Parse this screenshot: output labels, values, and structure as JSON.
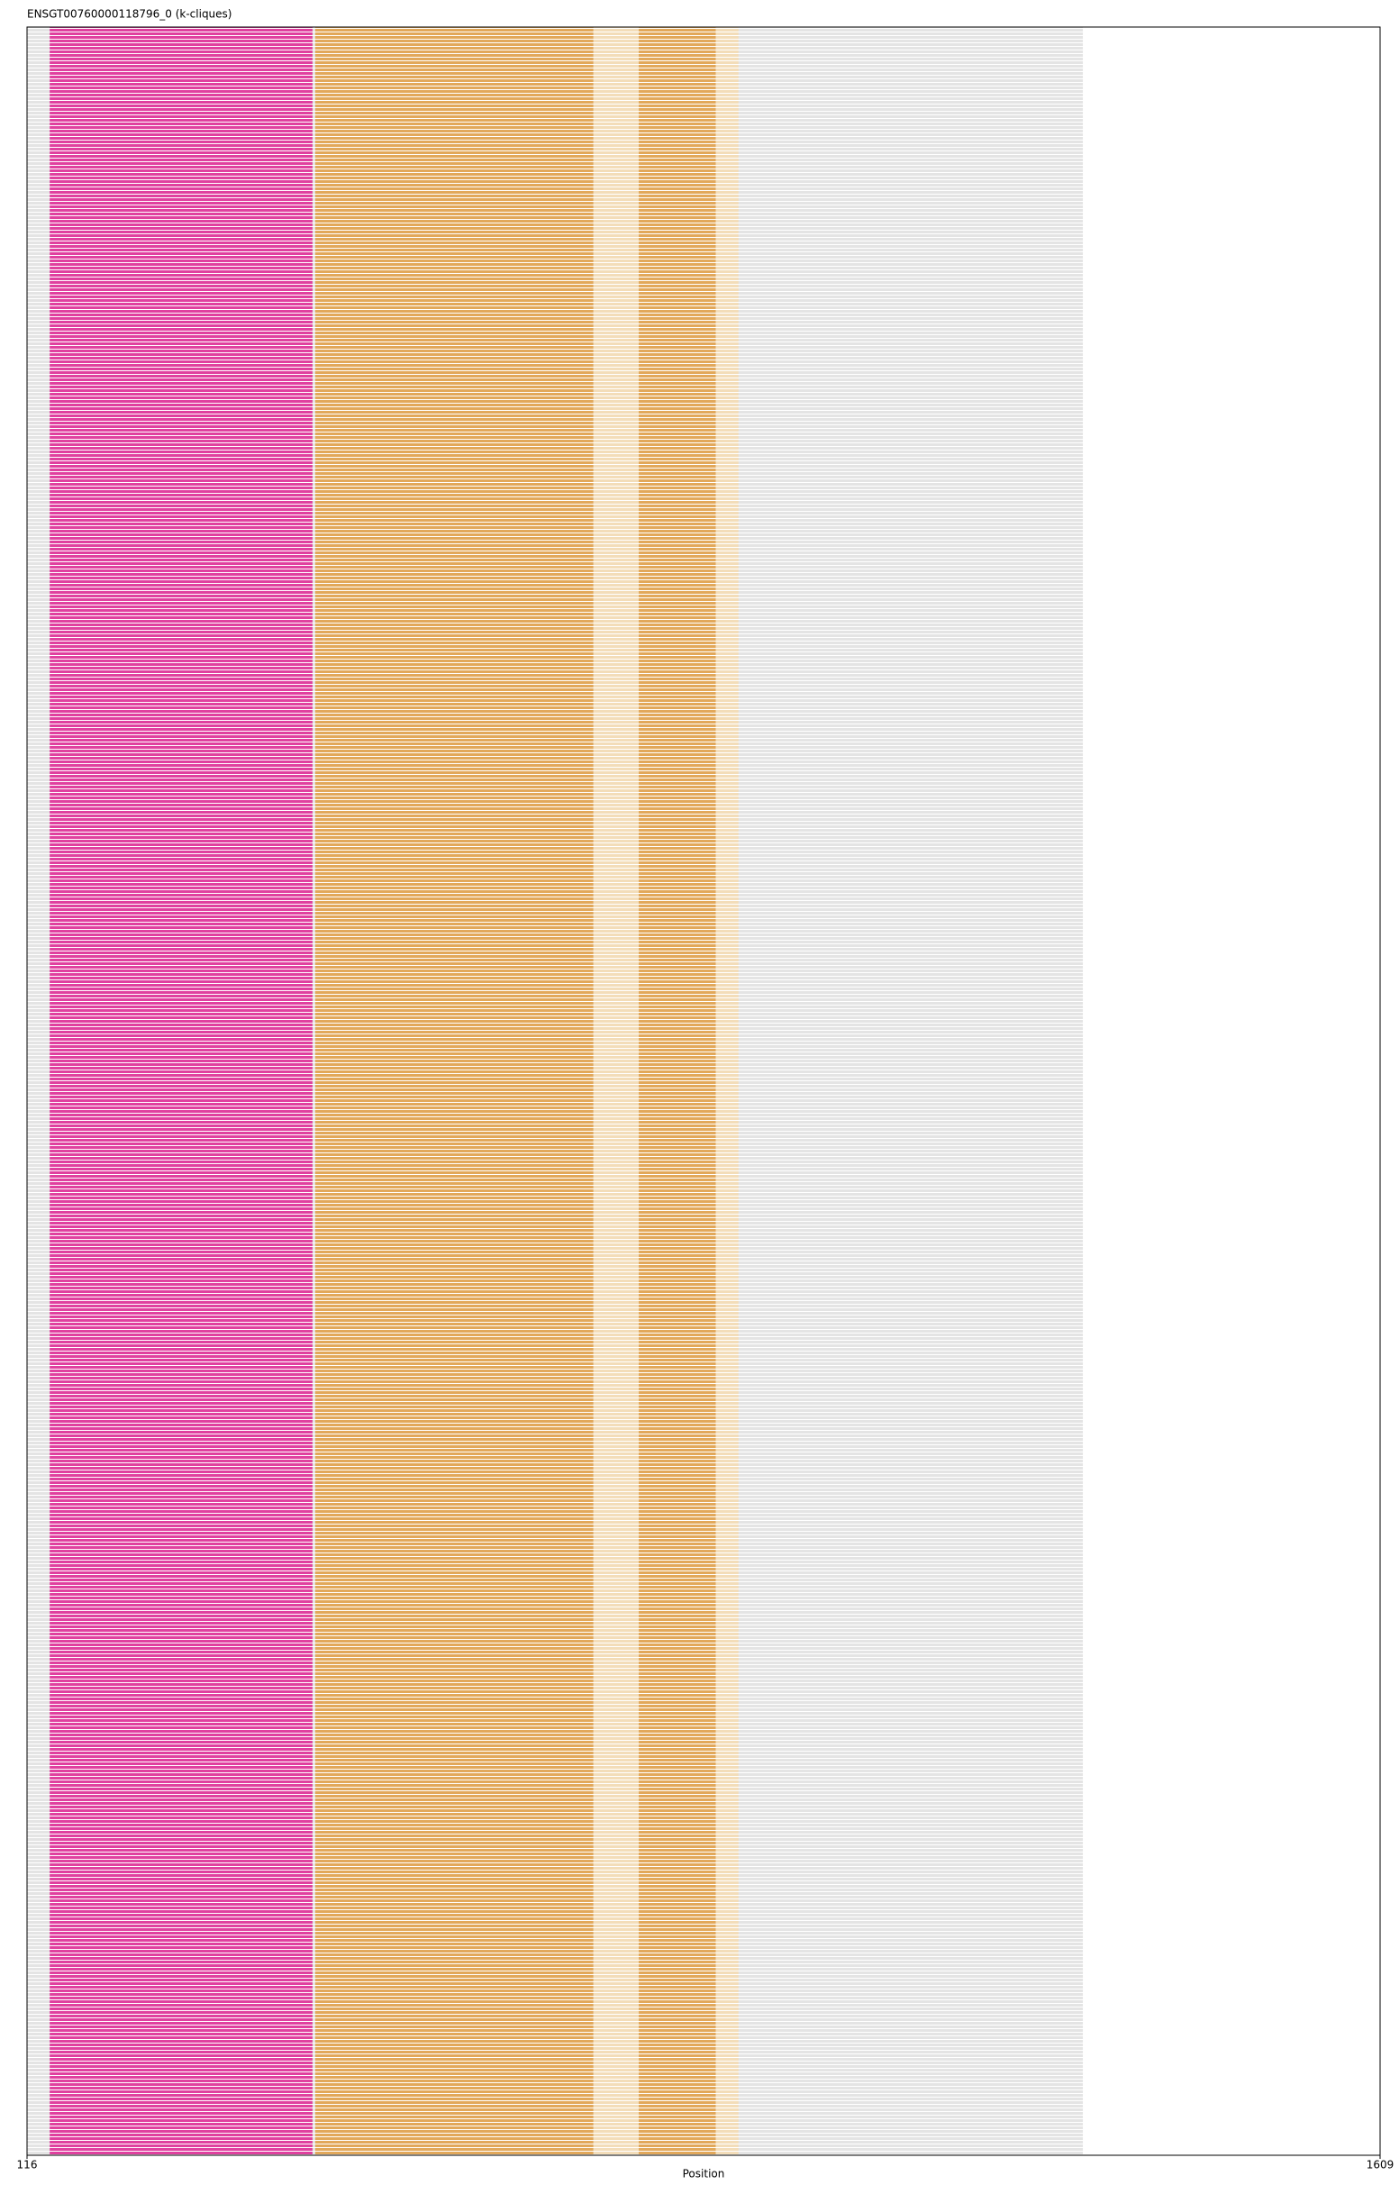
{
  "chart_data": {
    "type": "alignment",
    "title": "ENSGT00760000118796_0 (k-cliques)",
    "xlabel": "Position",
    "xlim": [
      116,
      1609
    ],
    "xticks": [
      116,
      1609
    ],
    "regions": [
      {
        "start": 116,
        "end": 1281,
        "color": "#e4e4e4"
      },
      {
        "start": 141,
        "end": 431,
        "color": "#e0409f"
      },
      {
        "start": 434,
        "end": 741,
        "color": "#e2a85a"
      },
      {
        "start": 741,
        "end": 791,
        "color": "#f3ddb9"
      },
      {
        "start": 791,
        "end": 876,
        "color": "#e2a85a"
      },
      {
        "start": 876,
        "end": 901,
        "color": "#f3ddb9"
      }
    ]
  }
}
